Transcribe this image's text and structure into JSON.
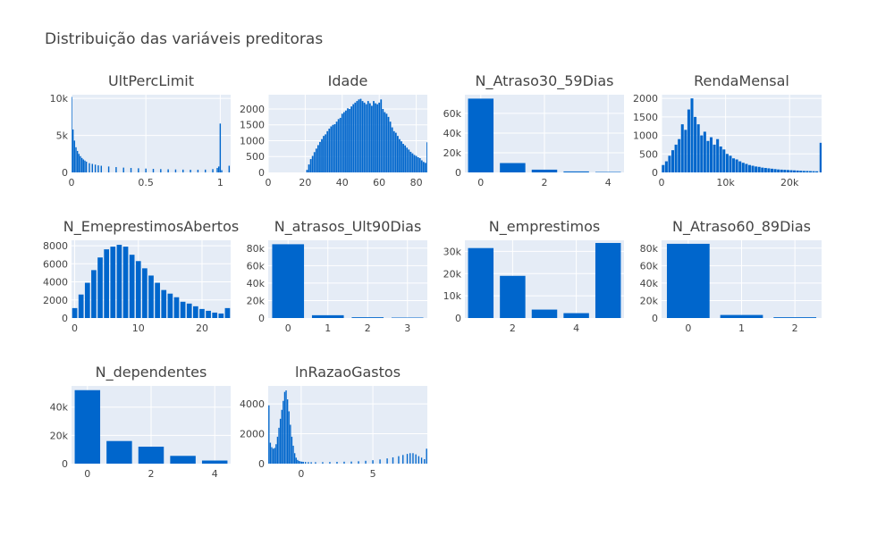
{
  "title": "Distribuição das variáveis preditoras",
  "colors": {
    "bar": "#0066cc",
    "plot_bg": "#e5ecf6",
    "grid": "#ffffff",
    "text": "#444444"
  },
  "chart_data": [
    {
      "type": "bar",
      "title": "UltPercLimit",
      "histogram": true,
      "xlim": [
        0,
        1.07
      ],
      "ylim": [
        0,
        10500
      ],
      "xticks": [
        {
          "v": 0,
          "label": "0"
        },
        {
          "v": 0.5,
          "label": "0.5"
        },
        {
          "v": 1,
          "label": "1"
        }
      ],
      "yticks": [
        {
          "v": 0,
          "label": "0"
        },
        {
          "v": 5000,
          "label": "5k"
        },
        {
          "v": 10000,
          "label": "10k"
        }
      ],
      "x": [
        0.0,
        0.01,
        0.02,
        0.03,
        0.04,
        0.05,
        0.06,
        0.07,
        0.08,
        0.09,
        0.1,
        0.12,
        0.14,
        0.16,
        0.18,
        0.2,
        0.25,
        0.3,
        0.35,
        0.4,
        0.45,
        0.5,
        0.55,
        0.6,
        0.65,
        0.7,
        0.75,
        0.8,
        0.85,
        0.9,
        0.95,
        0.98,
        0.99,
        1.0,
        1.01,
        1.06
      ],
      "values": [
        10200,
        5800,
        4300,
        3400,
        2900,
        2500,
        2200,
        1950,
        1750,
        1600,
        1450,
        1250,
        1150,
        1050,
        950,
        900,
        800,
        720,
        650,
        600,
        560,
        520,
        480,
        450,
        420,
        400,
        380,
        360,
        360,
        380,
        450,
        600,
        800,
        6600,
        300,
        900
      ]
    },
    {
      "type": "bar",
      "title": "Idade",
      "histogram": true,
      "xlim": [
        0,
        86
      ],
      "ylim": [
        0,
        2450
      ],
      "xticks": [
        {
          "v": 0,
          "label": "0"
        },
        {
          "v": 20,
          "label": "20"
        },
        {
          "v": 40,
          "label": "40"
        },
        {
          "v": 60,
          "label": "60"
        },
        {
          "v": 80,
          "label": "80"
        }
      ],
      "yticks": [
        {
          "v": 0,
          "label": "0"
        },
        {
          "v": 500,
          "label": "500"
        },
        {
          "v": 1000,
          "label": "1000"
        },
        {
          "v": 1500,
          "label": "1500"
        },
        {
          "v": 2000,
          "label": "2000"
        }
      ],
      "x": [
        21,
        22,
        23,
        24,
        25,
        26,
        27,
        28,
        29,
        30,
        31,
        32,
        33,
        34,
        35,
        36,
        37,
        38,
        39,
        40,
        41,
        42,
        43,
        44,
        45,
        46,
        47,
        48,
        49,
        50,
        51,
        52,
        53,
        54,
        55,
        56,
        57,
        58,
        59,
        60,
        61,
        62,
        63,
        64,
        65,
        66,
        67,
        68,
        69,
        70,
        71,
        72,
        73,
        74,
        75,
        76,
        77,
        78,
        79,
        80,
        81,
        82,
        83,
        84,
        85,
        86
      ],
      "values": [
        80,
        250,
        420,
        520,
        640,
        750,
        860,
        960,
        1050,
        1150,
        1200,
        1300,
        1380,
        1450,
        1500,
        1520,
        1600,
        1680,
        1720,
        1850,
        1900,
        1950,
        2020,
        2000,
        2080,
        2150,
        2200,
        2250,
        2300,
        2320,
        2250,
        2200,
        2150,
        2250,
        2180,
        2100,
        2250,
        2180,
        2150,
        2200,
        2300,
        2000,
        1900,
        1850,
        1750,
        1600,
        1420,
        1300,
        1250,
        1150,
        1050,
        980,
        900,
        850,
        780,
        720,
        650,
        600,
        550,
        520,
        480,
        450,
        380,
        330,
        300,
        950
      ]
    },
    {
      "type": "bar",
      "title": "N_Atraso30_59Dias",
      "xlim": [
        -0.5,
        4.5
      ],
      "ylim": [
        0,
        79000
      ],
      "xticks": [
        {
          "v": 0,
          "label": "0"
        },
        {
          "v": 2,
          "label": "2"
        },
        {
          "v": 4,
          "label": "4"
        }
      ],
      "yticks": [
        {
          "v": 0,
          "label": "0"
        },
        {
          "v": 20000,
          "label": "20k"
        },
        {
          "v": 40000,
          "label": "40k"
        },
        {
          "v": 60000,
          "label": "60k"
        }
      ],
      "x": [
        0,
        1,
        2,
        3,
        4
      ],
      "values": [
        75000,
        9500,
        2800,
        1000,
        450
      ]
    },
    {
      "type": "bar",
      "title": "RendaMensal",
      "histogram": true,
      "xlim": [
        0,
        25000
      ],
      "ylim": [
        0,
        2100
      ],
      "xticks": [
        {
          "v": 0,
          "label": "0"
        },
        {
          "v": 10000,
          "label": "10k"
        },
        {
          "v": 20000,
          "label": "20k"
        }
      ],
      "yticks": [
        {
          "v": 0,
          "label": "0"
        },
        {
          "v": 500,
          "label": "500"
        },
        {
          "v": 1000,
          "label": "1000"
        },
        {
          "v": 1500,
          "label": "1500"
        },
        {
          "v": 2000,
          "label": "2000"
        }
      ],
      "x": [
        250,
        750,
        1250,
        1750,
        2250,
        2750,
        3250,
        3750,
        4250,
        4750,
        5250,
        5750,
        6250,
        6750,
        7250,
        7750,
        8250,
        8750,
        9250,
        9750,
        10250,
        10750,
        11250,
        11750,
        12250,
        12750,
        13250,
        13750,
        14250,
        14750,
        15250,
        15750,
        16250,
        16750,
        17250,
        17750,
        18250,
        18750,
        19250,
        19750,
        20250,
        20750,
        21250,
        21750,
        22250,
        22750,
        23250,
        23750,
        24250,
        24900
      ],
      "values": [
        200,
        300,
        450,
        600,
        750,
        900,
        1300,
        1150,
        1700,
        2000,
        1500,
        1300,
        1000,
        1100,
        850,
        950,
        750,
        900,
        700,
        620,
        500,
        450,
        380,
        350,
        300,
        260,
        230,
        200,
        180,
        160,
        150,
        130,
        120,
        110,
        100,
        90,
        80,
        75,
        70,
        65,
        60,
        55,
        50,
        45,
        40,
        38,
        35,
        32,
        30,
        800
      ]
    },
    {
      "type": "bar",
      "title": "N_EmeprestimosAbertos",
      "xlim": [
        -0.5,
        24.5
      ],
      "ylim": [
        0,
        8600
      ],
      "xticks": [
        {
          "v": 0,
          "label": "0"
        },
        {
          "v": 10,
          "label": "10"
        },
        {
          "v": 20,
          "label": "20"
        }
      ],
      "yticks": [
        {
          "v": 0,
          "label": "0"
        },
        {
          "v": 2000,
          "label": "2000"
        },
        {
          "v": 4000,
          "label": "4000"
        },
        {
          "v": 6000,
          "label": "6000"
        },
        {
          "v": 8000,
          "label": "8000"
        }
      ],
      "x": [
        0,
        1,
        2,
        3,
        4,
        5,
        6,
        7,
        8,
        9,
        10,
        11,
        12,
        13,
        14,
        15,
        16,
        17,
        18,
        19,
        20,
        21,
        22,
        23,
        24
      ],
      "values": [
        1100,
        2600,
        3900,
        5300,
        6700,
        7600,
        7900,
        8100,
        7900,
        7000,
        6300,
        5500,
        4700,
        3900,
        3100,
        2700,
        2300,
        1800,
        1600,
        1300,
        1000,
        800,
        600,
        500,
        1100
      ]
    },
    {
      "type": "bar",
      "title": "N_atrasos_Ult90Dias",
      "xlim": [
        -0.5,
        3.5
      ],
      "ylim": [
        0,
        89000
      ],
      "xticks": [
        {
          "v": 0,
          "label": "0"
        },
        {
          "v": 1,
          "label": "1"
        },
        {
          "v": 2,
          "label": "2"
        },
        {
          "v": 3,
          "label": "3"
        }
      ],
      "yticks": [
        {
          "v": 0,
          "label": "0"
        },
        {
          "v": 20000,
          "label": "20k"
        },
        {
          "v": 40000,
          "label": "40k"
        },
        {
          "v": 60000,
          "label": "60k"
        },
        {
          "v": 80000,
          "label": "80k"
        }
      ],
      "x": [
        0,
        1,
        2,
        3
      ],
      "values": [
        84500,
        3200,
        900,
        500
      ]
    },
    {
      "type": "bar",
      "title": "N_emprestimos",
      "xlim": [
        0.5,
        5.5
      ],
      "ylim": [
        0,
        35000
      ],
      "xticks": [
        {
          "v": 2,
          "label": "2"
        },
        {
          "v": 4,
          "label": "4"
        }
      ],
      "yticks": [
        {
          "v": 0,
          "label": "0"
        },
        {
          "v": 10000,
          "label": "10k"
        },
        {
          "v": 20000,
          "label": "20k"
        },
        {
          "v": 30000,
          "label": "30k"
        }
      ],
      "x": [
        1,
        2,
        3,
        4,
        5
      ],
      "values": [
        31500,
        19000,
        3800,
        2200,
        33800
      ]
    },
    {
      "type": "bar",
      "title": "N_Atraso60_89Dias",
      "xlim": [
        -0.5,
        2.5
      ],
      "ylim": [
        0,
        89000
      ],
      "xticks": [
        {
          "v": 0,
          "label": "0"
        },
        {
          "v": 1,
          "label": "1"
        },
        {
          "v": 2,
          "label": "2"
        }
      ],
      "yticks": [
        {
          "v": 0,
          "label": "0"
        },
        {
          "v": 20000,
          "label": "20k"
        },
        {
          "v": 40000,
          "label": "40k"
        },
        {
          "v": 60000,
          "label": "60k"
        },
        {
          "v": 80000,
          "label": "80k"
        }
      ],
      "x": [
        0,
        1,
        2
      ],
      "values": [
        85000,
        3500,
        900
      ]
    },
    {
      "type": "bar",
      "title": "N_dependentes",
      "xlim": [
        -0.5,
        4.5
      ],
      "ylim": [
        0,
        55000
      ],
      "xticks": [
        {
          "v": 0,
          "label": "0"
        },
        {
          "v": 2,
          "label": "2"
        },
        {
          "v": 4,
          "label": "4"
        }
      ],
      "yticks": [
        {
          "v": 0,
          "label": "0"
        },
        {
          "v": 20000,
          "label": "20k"
        },
        {
          "v": 40000,
          "label": "40k"
        }
      ],
      "x": [
        0,
        1,
        2,
        3,
        4
      ],
      "values": [
        52000,
        16000,
        12000,
        5500,
        2200
      ]
    },
    {
      "type": "bar",
      "title": "lnRazaoGastos",
      "histogram": true,
      "xlim": [
        -2.3,
        8.8
      ],
      "ylim": [
        0,
        5200
      ],
      "xticks": [
        {
          "v": 0,
          "label": "0"
        },
        {
          "v": 5,
          "label": "5"
        }
      ],
      "yticks": [
        {
          "v": 0,
          "label": "0"
        },
        {
          "v": 2000,
          "label": "2000"
        },
        {
          "v": 4000,
          "label": "4000"
        }
      ],
      "x": [
        -2.25,
        -2.15,
        -2.05,
        -1.95,
        -1.85,
        -1.75,
        -1.65,
        -1.55,
        -1.45,
        -1.35,
        -1.25,
        -1.15,
        -1.05,
        -0.95,
        -0.85,
        -0.75,
        -0.65,
        -0.55,
        -0.45,
        -0.35,
        -0.25,
        -0.15,
        -0.05,
        0.05,
        0.15,
        0.3,
        0.5,
        0.7,
        1.0,
        1.5,
        2.0,
        2.5,
        3.0,
        3.5,
        4.0,
        4.5,
        5.0,
        5.5,
        6.0,
        6.4,
        6.8,
        7.1,
        7.4,
        7.6,
        7.8,
        8.0,
        8.2,
        8.4,
        8.6,
        8.75
      ],
      "values": [
        3900,
        1400,
        1100,
        1000,
        1050,
        1300,
        1800,
        2400,
        3000,
        3600,
        4200,
        4800,
        4900,
        4300,
        3500,
        2600,
        1800,
        1200,
        700,
        400,
        250,
        180,
        150,
        130,
        120,
        110,
        100,
        95,
        95,
        100,
        110,
        120,
        130,
        140,
        160,
        190,
        230,
        280,
        350,
        420,
        500,
        580,
        650,
        700,
        700,
        620,
        500,
        400,
        300,
        1000
      ]
    }
  ]
}
